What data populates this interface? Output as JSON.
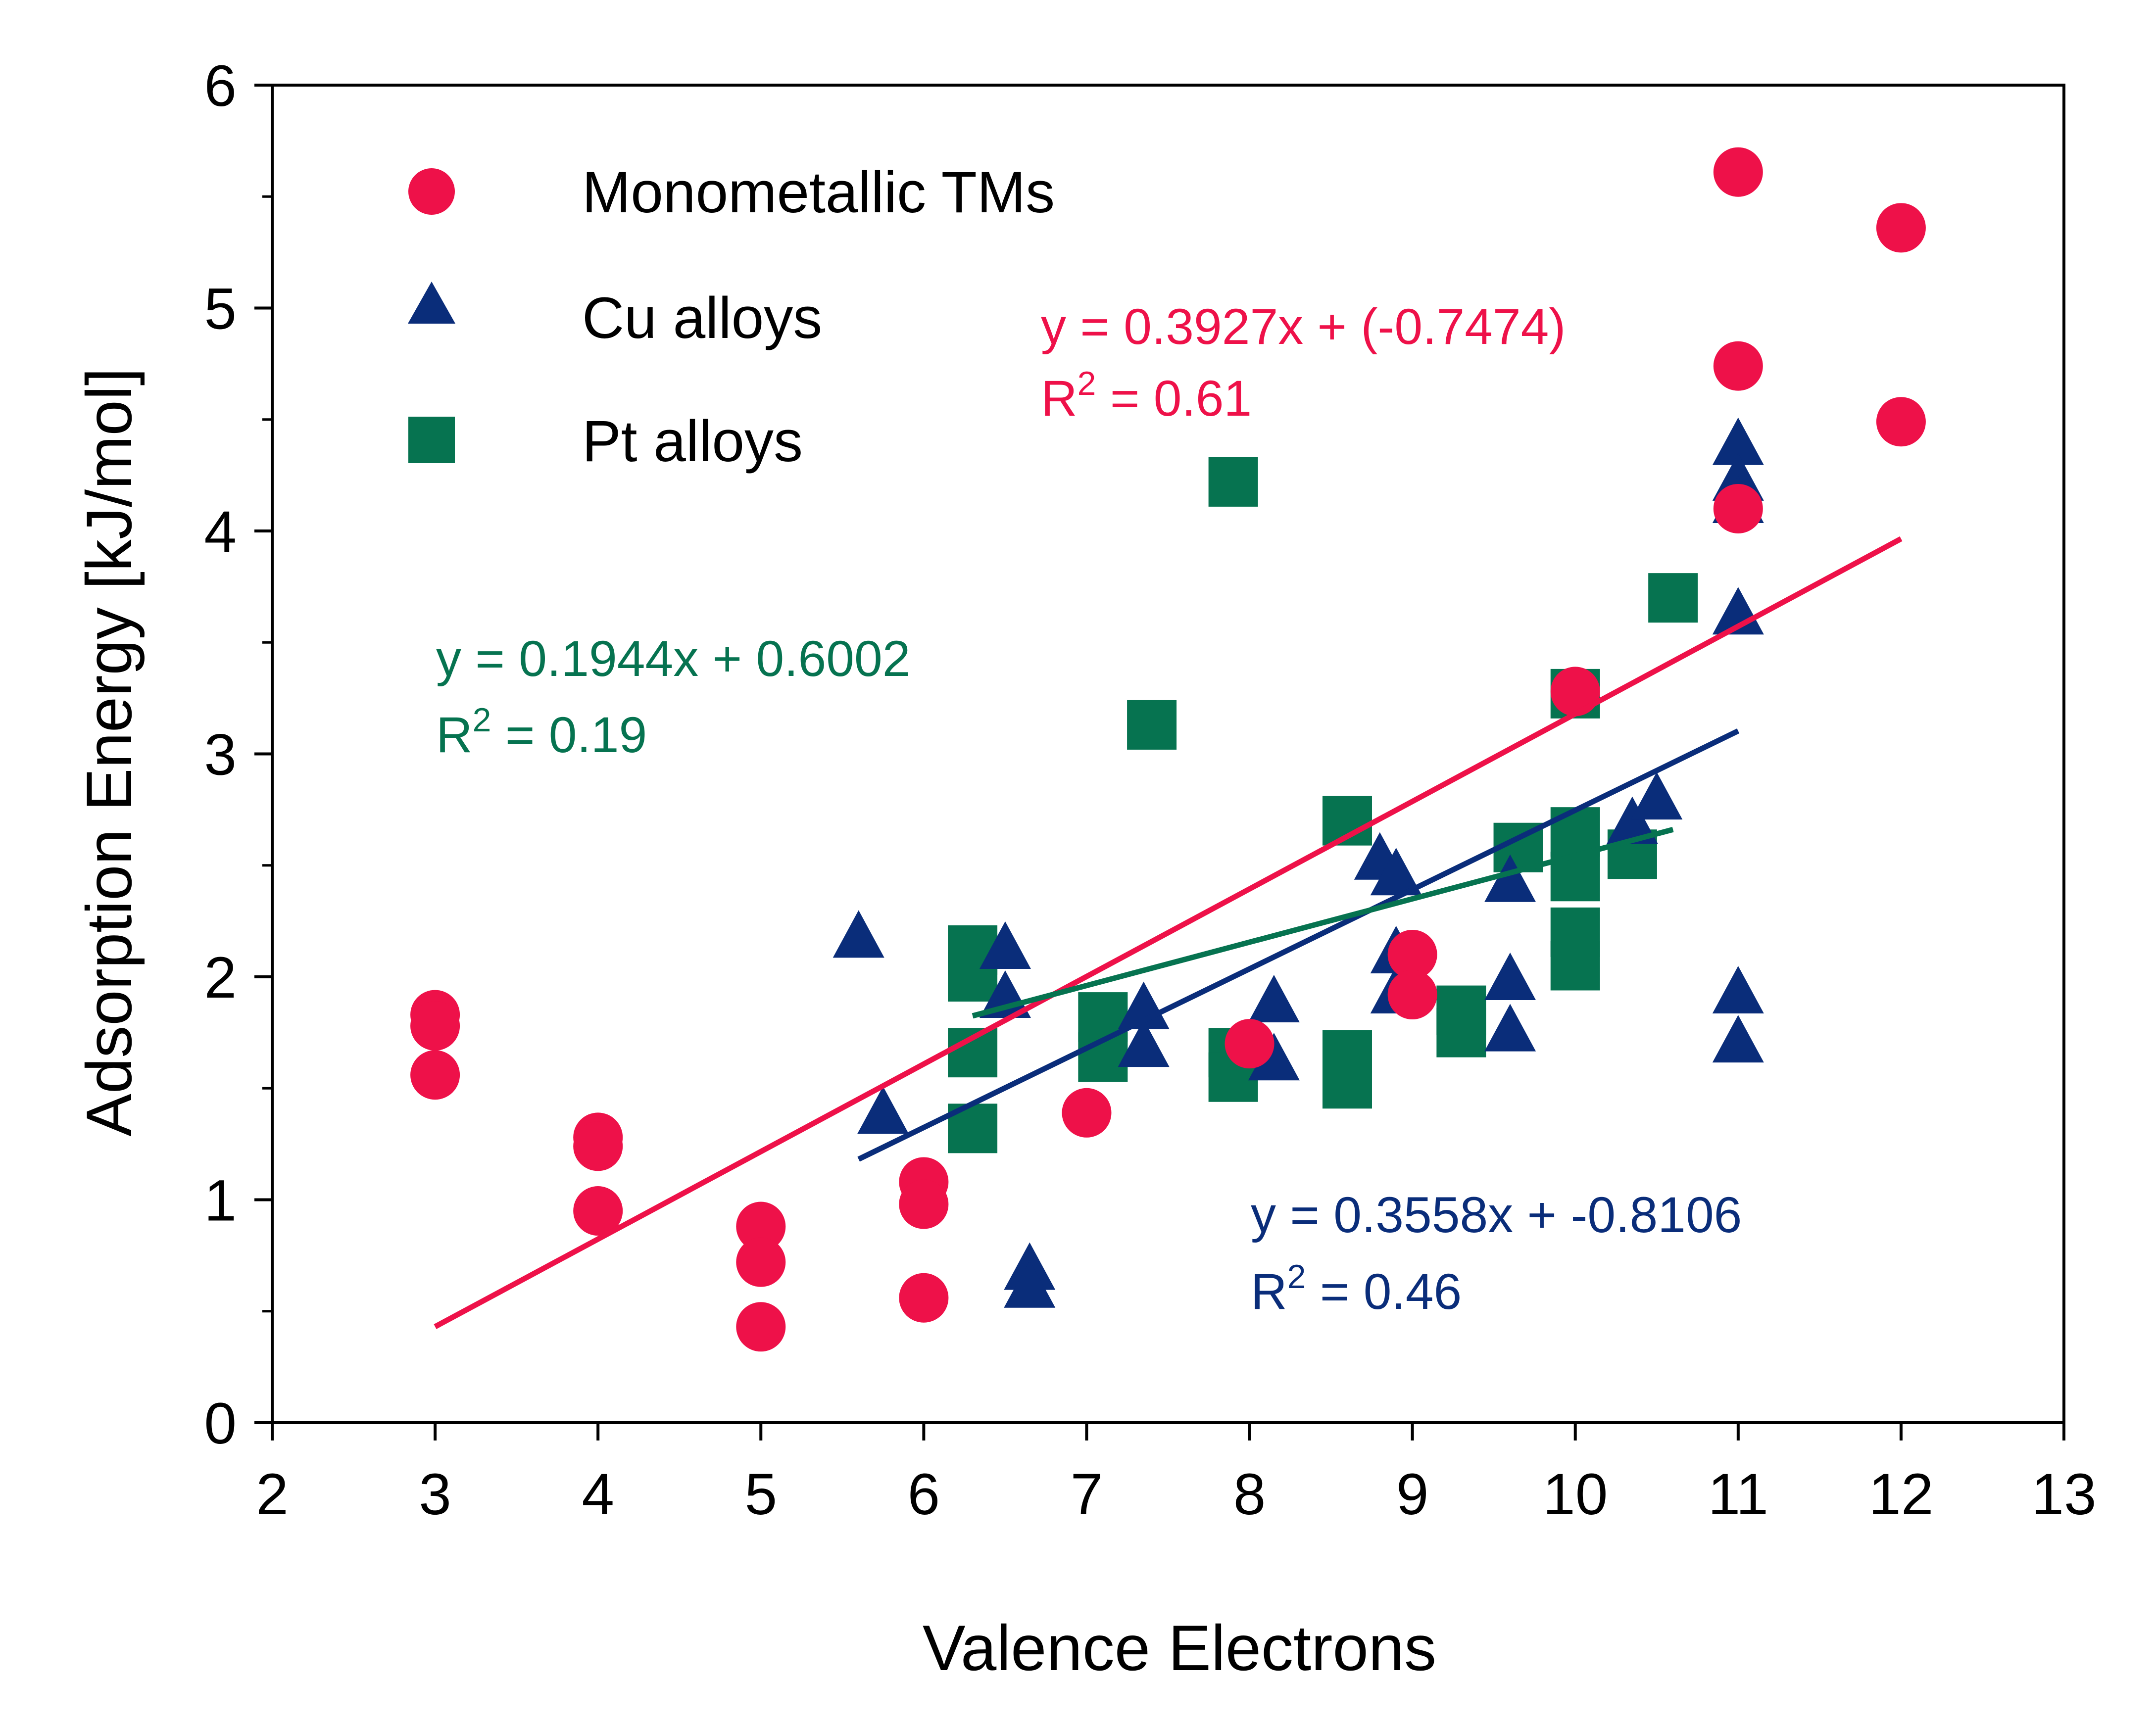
{
  "chart_data": {
    "type": "scatter",
    "xlabel": "Valence Electrons",
    "ylabel": "Adsorption Energy [kJ/mol]",
    "xlim": [
      2,
      13
    ],
    "ylim": [
      0,
      6
    ],
    "xticks": [
      "2",
      "3",
      "4",
      "5",
      "6",
      "7",
      "8",
      "9",
      "10",
      "11",
      "12",
      "13"
    ],
    "yticks": [
      "0",
      "1",
      "2",
      "3",
      "4",
      "5",
      "6"
    ],
    "legend_position": "top-left",
    "grid": false,
    "series": [
      {
        "name": "Monometallic TMs",
        "marker": "circle",
        "color": "#ee1149",
        "points": [
          [
            3,
            1.83
          ],
          [
            3,
            1.78
          ],
          [
            3,
            1.56
          ],
          [
            4,
            1.28
          ],
          [
            4,
            1.24
          ],
          [
            4,
            0.95
          ],
          [
            5,
            0.88
          ],
          [
            5,
            0.72
          ],
          [
            5,
            0.43
          ],
          [
            6,
            1.08
          ],
          [
            6,
            0.98
          ],
          [
            6,
            0.56
          ],
          [
            7,
            1.39
          ],
          [
            8,
            1.7
          ],
          [
            9,
            2.1
          ],
          [
            9,
            1.92
          ],
          [
            10,
            3.28
          ],
          [
            11,
            5.61
          ],
          [
            11,
            4.74
          ],
          [
            11,
            4.1
          ],
          [
            12,
            5.36
          ],
          [
            12,
            4.49
          ]
        ]
      },
      {
        "name": "Cu alloys",
        "marker": "triangle",
        "color": "#0a2d7a",
        "points": [
          [
            5.6,
            2.17
          ],
          [
            5.75,
            1.38
          ],
          [
            6.5,
            2.12
          ],
          [
            6.5,
            1.9
          ],
          [
            6.65,
            0.68
          ],
          [
            6.65,
            0.6
          ],
          [
            7.35,
            1.85
          ],
          [
            7.35,
            1.68
          ],
          [
            8.15,
            1.88
          ],
          [
            8.15,
            1.62
          ],
          [
            8.8,
            2.52
          ],
          [
            8.9,
            2.45
          ],
          [
            8.9,
            2.1
          ],
          [
            8.9,
            1.92
          ],
          [
            9.6,
            2.42
          ],
          [
            9.6,
            1.98
          ],
          [
            9.6,
            1.75
          ],
          [
            10.35,
            2.68
          ],
          [
            10.5,
            2.79
          ],
          [
            11,
            4.38
          ],
          [
            11,
            4.22
          ],
          [
            11,
            4.12
          ],
          [
            11,
            3.62
          ],
          [
            11,
            1.92
          ],
          [
            11,
            1.7
          ]
        ]
      },
      {
        "name": "Pt alloys",
        "marker": "square",
        "color": "#067350",
        "points": [
          [
            6.3,
            2.12
          ],
          [
            6.3,
            2.0
          ],
          [
            6.3,
            1.66
          ],
          [
            6.3,
            1.32
          ],
          [
            7.1,
            1.82
          ],
          [
            7.1,
            1.64
          ],
          [
            7.4,
            3.13
          ],
          [
            7.9,
            4.22
          ],
          [
            7.9,
            1.66
          ],
          [
            7.9,
            1.55
          ],
          [
            8.6,
            2.7
          ],
          [
            8.6,
            1.65
          ],
          [
            8.6,
            1.52
          ],
          [
            9.3,
            1.85
          ],
          [
            9.3,
            1.75
          ],
          [
            9.65,
            2.58
          ],
          [
            10,
            3.27
          ],
          [
            10,
            2.65
          ],
          [
            10,
            2.45
          ],
          [
            10,
            2.2
          ],
          [
            10,
            2.05
          ],
          [
            10.35,
            2.55
          ],
          [
            10.6,
            3.7
          ]
        ]
      }
    ],
    "fit_lines": [
      {
        "series": "Monometallic TMs",
        "color": "#ee1149",
        "x_range": [
          3,
          12
        ],
        "slope": 0.3927,
        "intercept": -0.7474
      },
      {
        "series": "Cu alloys",
        "color": "#0a2d7a",
        "x_range": [
          5.6,
          11
        ],
        "slope": 0.3558,
        "intercept": -0.8106
      },
      {
        "series": "Pt alloys",
        "color": "#067350",
        "x_range": [
          6.3,
          10.6
        ],
        "slope": 0.1944,
        "intercept": 0.6002
      }
    ],
    "annotations": [
      {
        "line1": "y = 0.3927x + (-0.7474)",
        "base": "R",
        "sup": "2",
        "tail": " = 0.61",
        "color": "#ee1149"
      },
      {
        "line1": "y = 0.1944x + 0.6002",
        "base": "R",
        "sup": "2",
        "tail": " = 0.19",
        "color": "#067350"
      },
      {
        "line1": "y = 0.3558x + -0.8106",
        "base": "R",
        "sup": "2",
        "tail": " = 0.46",
        "color": "#0a2d7a"
      }
    ]
  }
}
